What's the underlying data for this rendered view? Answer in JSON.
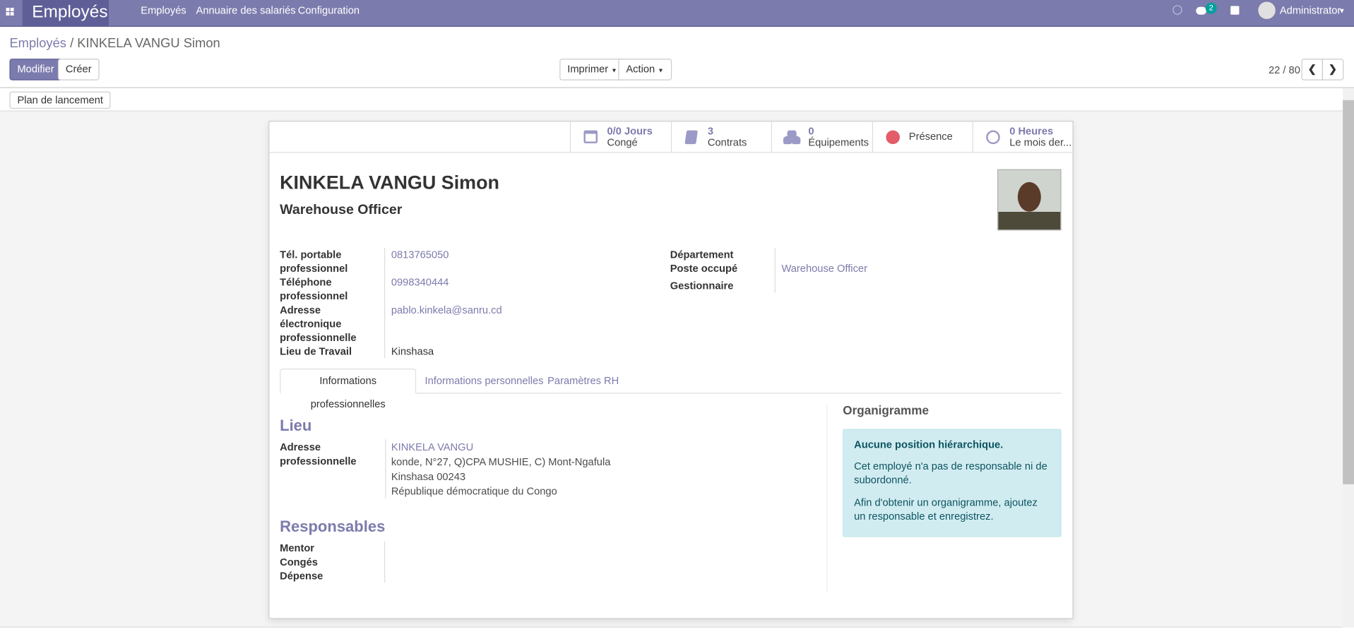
{
  "navbar": {
    "app": "Employés",
    "menus": [
      "Employés",
      "Annuaire des salariés",
      "Configuration"
    ],
    "chat_count": "2",
    "user": "Administrator",
    "color": "#7c7bad"
  },
  "breadcrumb": {
    "parent": "Employés",
    "current": "KINKELA VANGU Simon"
  },
  "toolbar": {
    "edit": "Modifier",
    "create": "Créer",
    "print": "Imprimer",
    "action": "Action",
    "pager": "22 / 80",
    "launch": "Plan de lancement"
  },
  "stats": [
    {
      "icon": "calendar-icon",
      "value": "0/0 Jours",
      "label": "Congé"
    },
    {
      "icon": "book-icon",
      "value": "3",
      "label": "Contrats"
    },
    {
      "icon": "cubes-icon",
      "value": "0",
      "label": "Équipements"
    },
    {
      "icon": "presence-dot-icon",
      "value": "",
      "label": "Présence",
      "color": "#e25c6a"
    },
    {
      "icon": "clock-icon",
      "value": "0 Heures",
      "label": "Le mois der..."
    }
  ],
  "employee": {
    "name": "KINKELA VANGU Simon",
    "job": "Warehouse Officer"
  },
  "fields_left": [
    {
      "label": "Tél. portable professionnel",
      "value": "0813765050"
    },
    {
      "label": "Téléphone professionnel",
      "value": "0998340444"
    },
    {
      "label": "Adresse électronique professionnelle",
      "value": "pablo.kinkela@sanru.cd"
    },
    {
      "label": "Lieu de Travail",
      "value": "Kinshasa"
    }
  ],
  "fields_right": [
    {
      "label": "Département",
      "value": ""
    },
    {
      "label": "Poste occupé",
      "value": "Warehouse Officer"
    },
    {
      "label": "Gestionnaire",
      "value": ""
    }
  ],
  "tabs": [
    "Informations professionnelles",
    "Informations personnelles",
    "Paramètres RH"
  ],
  "lieu": {
    "title": "Lieu",
    "label": "Adresse professionnelle",
    "name": "KINKELA VANGU",
    "lines": [
      "konde, N°27, Q)CPA MUSHIE, C) Mont-Ngafula",
      "Kinshasa 00243",
      "République démocratique du Congo"
    ]
  },
  "responsables": {
    "title": "Responsables",
    "labels": [
      "Mentor",
      "Congés",
      "Dépense"
    ]
  },
  "org": {
    "title": "Organigramme",
    "heading": "Aucune position hiérarchique.",
    "p1": "Cet employé n'a pas de responsable ni de subordonné.",
    "p2": "Afin d'obtenir un organigramme, ajoutez un responsable et enregistrez."
  }
}
